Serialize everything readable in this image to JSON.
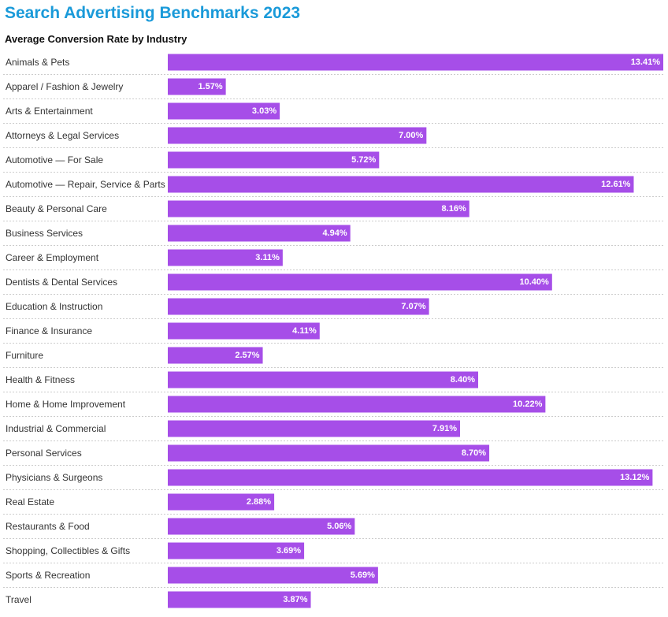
{
  "title": "Search Advertising Benchmarks 2023",
  "subtitle": "Average Conversion Rate by Industry",
  "colors": {
    "title": "#1a9ad9",
    "bar": "#a64ee8"
  },
  "chart_data": {
    "type": "bar",
    "orientation": "horizontal",
    "title": "Search Advertising Benchmarks 2023",
    "subtitle": "Average Conversion Rate by Industry",
    "categories": [
      "Animals & Pets",
      "Apparel / Fashion & Jewelry",
      "Arts & Entertainment",
      "Attorneys & Legal Services",
      "Automotive — For Sale",
      "Automotive — Repair, Service & Parts",
      "Beauty & Personal Care",
      "Business Services",
      "Career & Employment",
      "Dentists & Dental Services",
      "Education & Instruction",
      "Finance & Insurance",
      "Furniture",
      "Health & Fitness",
      "Home & Home Improvement",
      "Industrial & Commercial",
      "Personal Services",
      "Physicians & Surgeons",
      "Real Estate",
      "Restaurants & Food",
      "Shopping, Collectibles & Gifts",
      "Sports & Recreation",
      "Travel"
    ],
    "values": [
      13.41,
      1.57,
      3.03,
      7.0,
      5.72,
      12.61,
      8.16,
      4.94,
      3.11,
      10.4,
      7.07,
      4.11,
      2.57,
      8.4,
      10.22,
      7.91,
      8.7,
      13.12,
      2.88,
      5.06,
      3.69,
      5.69,
      3.87
    ],
    "value_labels": [
      "13.41%",
      "1.57%",
      "3.03%",
      "7.00%",
      "5.72%",
      "12.61%",
      "8.16%",
      "4.94%",
      "3.11%",
      "10.40%",
      "7.07%",
      "4.11%",
      "2.57%",
      "8.40%",
      "10.22%",
      "7.91%",
      "8.70%",
      "13.12%",
      "2.88%",
      "5.06%",
      "3.69%",
      "5.69%",
      "3.87%"
    ],
    "xlim": [
      0,
      13.41
    ],
    "grid": false,
    "legend": "none"
  }
}
